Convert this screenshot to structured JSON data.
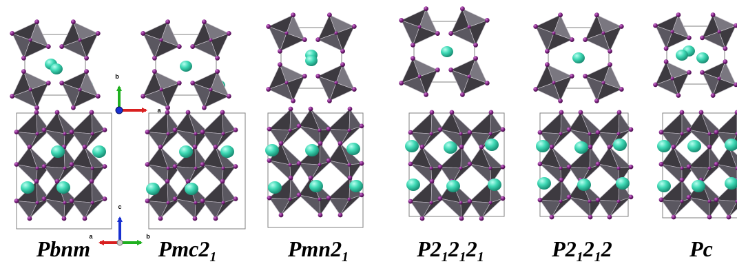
{
  "structures": [
    {
      "name": "pbnm",
      "label": [
        {
          "text": "Pbnm",
          "sub": false
        }
      ]
    },
    {
      "name": "pmc21",
      "label": [
        {
          "text": "Pmc",
          "sub": false
        },
        {
          "text": "2",
          "sub": false
        },
        {
          "text": "1",
          "sub": true
        }
      ]
    },
    {
      "name": "pmn21",
      "label": [
        {
          "text": "Pmn",
          "sub": false
        },
        {
          "text": "2",
          "sub": false
        },
        {
          "text": "1",
          "sub": true
        }
      ]
    },
    {
      "name": "p212121",
      "label": [
        {
          "text": "P",
          "sub": false
        },
        {
          "text": "2",
          "sub": false
        },
        {
          "text": "1",
          "sub": true
        },
        {
          "text": "2",
          "sub": false
        },
        {
          "text": "1",
          "sub": true
        },
        {
          "text": "2",
          "sub": false
        },
        {
          "text": "1",
          "sub": true
        }
      ]
    },
    {
      "name": "p21212",
      "label": [
        {
          "text": "P",
          "sub": false
        },
        {
          "text": "2",
          "sub": false
        },
        {
          "text": "1",
          "sub": true
        },
        {
          "text": "2",
          "sub": false
        },
        {
          "text": "1",
          "sub": true
        },
        {
          "text": "2",
          "sub": false
        }
      ]
    },
    {
      "name": "pc",
      "label": [
        {
          "text": "Pc",
          "sub": false
        }
      ]
    }
  ],
  "axes_top": {
    "horizontal": "a",
    "vertical": "b"
  },
  "axes_bottom": {
    "left": "a",
    "up": "c",
    "right": "b"
  },
  "colors": {
    "octahedron_dark": "#3d3a40",
    "octahedron_mid": "#5a5760",
    "octahedron_light": "#7a7780",
    "oxygen": "#7a1f7e",
    "cation": "#3fd9b5",
    "cell_line": "#7f7f7f",
    "axis_a": "#d92020",
    "axis_b": "#20b020",
    "axis_c": "#1830d0"
  }
}
